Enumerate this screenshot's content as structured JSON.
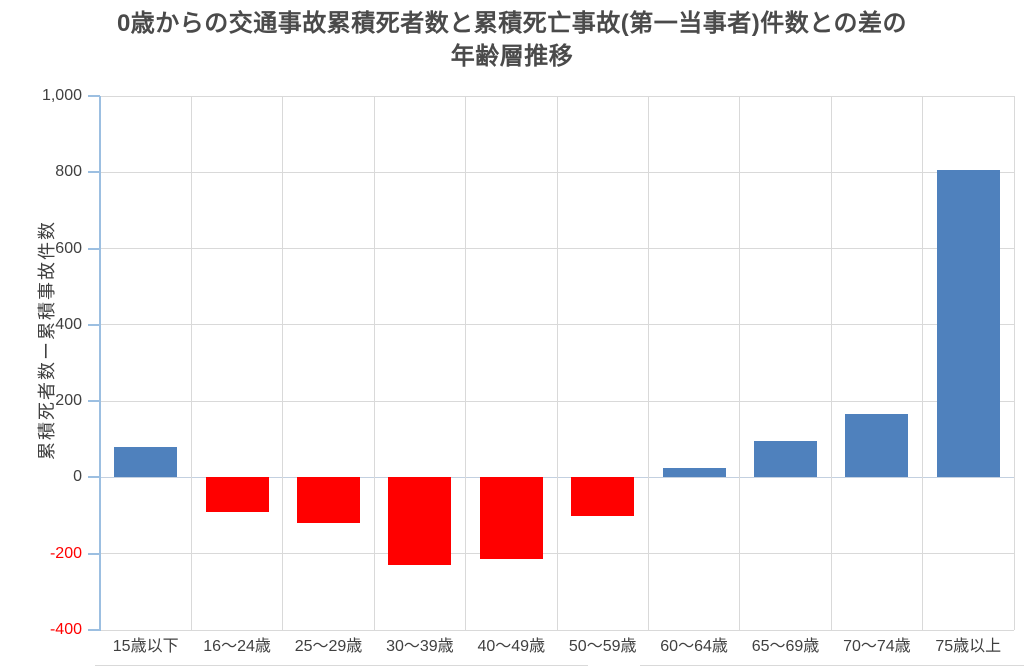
{
  "chart_data": {
    "type": "bar",
    "title": "0歳からの交通事故累積死者数と累積死亡事故(第一当事者)件数との差の年齢層推移",
    "title_lines": [
      "0歳からの交通事故累積死者数と累積死亡事故(第一当事者)件数との差の",
      "年齢層推移"
    ],
    "ylabel": "累積死者数ー累積事故件数",
    "xlabel": "",
    "categories": [
      "15歳以下",
      "16〜24歳",
      "25〜29歳",
      "30〜39歳",
      "40〜49歳",
      "50〜59歳",
      "60〜64歳",
      "65〜69歳",
      "70〜74歳",
      "75歳以上"
    ],
    "values": [
      80,
      -90,
      -120,
      -230,
      -215,
      -100,
      25,
      95,
      165,
      805
    ],
    "ylim": [
      -400,
      1000
    ],
    "ytick_step": 200,
    "yticks": [
      1000,
      800,
      600,
      400,
      200,
      0,
      -200,
      -400
    ],
    "grid": true,
    "legend": "none",
    "colors": {
      "positive_bar": "#4f81bd",
      "negative_bar": "#ff0000",
      "gridline": "#d9d9d9",
      "axis_line": "#9cbfe1",
      "tick_label": "#404040",
      "negative_tick_label": "#ff0000",
      "title": "#4a4a4a"
    }
  }
}
